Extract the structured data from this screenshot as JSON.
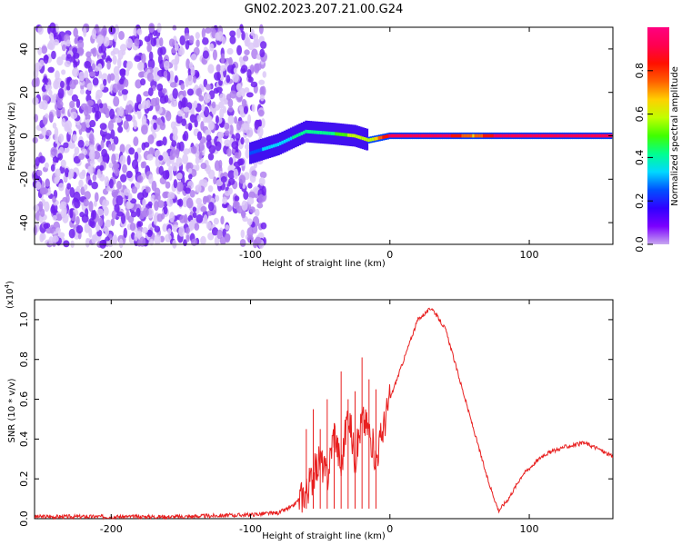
{
  "title": "GN02.2023.207.21.00.G24",
  "chart_data": [
    {
      "type": "heatmap",
      "xlabel": "Height of straight line (km)",
      "ylabel": "Frequency (Hz)",
      "xlim": [
        -255,
        160
      ],
      "ylim": [
        -50,
        50
      ],
      "xticks": [
        -200,
        -100,
        0,
        100
      ],
      "yticks": [
        40,
        20,
        0,
        -20,
        -40
      ],
      "colorbar": {
        "label": "Normalized spectral amplitude",
        "range": [
          0,
          1
        ],
        "ticks": [
          "0.0",
          "0.2",
          "0.4",
          "0.6",
          "0.8"
        ],
        "colors": [
          "#c8a8f0",
          "#7b00ff",
          "#3000ff",
          "#0050ff",
          "#00d8ff",
          "#00ff90",
          "#40ff00",
          "#c0ff00",
          "#ffd000",
          "#ff6000",
          "#ff1000",
          "#ff0050",
          "#ff0080"
        ]
      },
      "features": [
        {
          "name": "noise",
          "x_range": [
            -255,
            -90
          ],
          "freq_range": [
            -50,
            50
          ],
          "amplitude": 0.1
        },
        {
          "name": "signal",
          "x": [
            -100,
            -80,
            -60,
            -40,
            -25,
            -15,
            0,
            20,
            40,
            60,
            80,
            100,
            120,
            160
          ],
          "freq": [
            -8,
            -4,
            2,
            1,
            0,
            -2,
            0,
            0,
            0,
            0,
            0,
            0,
            0,
            0
          ],
          "amplitude": [
            0.25,
            0.35,
            0.4,
            0.45,
            0.6,
            0.55,
            0.9,
            0.95,
            0.92,
            0.7,
            0.95,
            0.95,
            0.95,
            0.95
          ]
        }
      ]
    },
    {
      "type": "line",
      "xlabel": "Height of straight line (km)",
      "ylabel": "SNR (10 * v/v)",
      "scale_label": "(x10",
      "scale_exp": "4",
      "scale_close": ")",
      "xlim": [
        -255,
        160
      ],
      "ylim": [
        0,
        1.1
      ],
      "xticks": [
        -200,
        -100,
        0,
        100
      ],
      "yticks": [
        "0.0",
        "0.2",
        "0.4",
        "0.6",
        "0.8",
        "1.0"
      ],
      "color": "#e82020",
      "x": [
        -255,
        -150,
        -100,
        -80,
        -70,
        -60,
        -55,
        -50,
        -45,
        -40,
        -35,
        -30,
        -25,
        -20,
        -15,
        -10,
        -5,
        0,
        10,
        20,
        30,
        40,
        50,
        60,
        70,
        78,
        85,
        95,
        110,
        125,
        140,
        150,
        160
      ],
      "y": [
        0.01,
        0.01,
        0.02,
        0.03,
        0.06,
        0.14,
        0.22,
        0.3,
        0.2,
        0.45,
        0.25,
        0.55,
        0.3,
        0.5,
        0.45,
        0.3,
        0.45,
        0.6,
        0.8,
        1.0,
        1.06,
        0.95,
        0.7,
        0.45,
        0.2,
        0.04,
        0.1,
        0.22,
        0.32,
        0.36,
        0.38,
        0.35,
        0.31
      ],
      "spikes": [
        [
          -60,
          0.45
        ],
        [
          -55,
          0.55
        ],
        [
          -50,
          0.45
        ],
        [
          -45,
          0.6
        ],
        [
          -40,
          0.48
        ],
        [
          -35,
          0.74
        ],
        [
          -30,
          0.6
        ],
        [
          -25,
          0.64
        ],
        [
          -20,
          0.81
        ],
        [
          -15,
          0.7
        ],
        [
          -10,
          0.65
        ]
      ]
    }
  ]
}
